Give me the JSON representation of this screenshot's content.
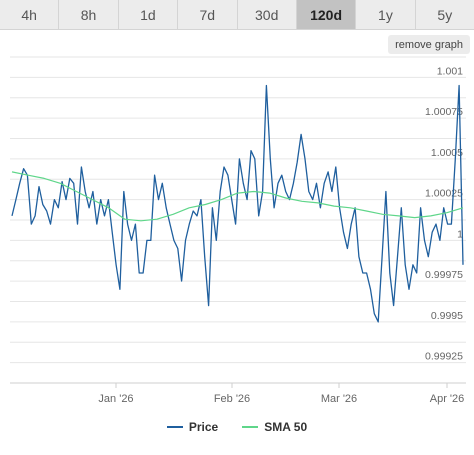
{
  "tabs": [
    {
      "label": "4h",
      "active": false
    },
    {
      "label": "8h",
      "active": false
    },
    {
      "label": "1d",
      "active": false
    },
    {
      "label": "7d",
      "active": false
    },
    {
      "label": "30d",
      "active": false
    },
    {
      "label": "120d",
      "active": true
    },
    {
      "label": "1y",
      "active": false
    },
    {
      "label": "5y",
      "active": false
    }
  ],
  "remove_graph_label": "remove graph",
  "colors": {
    "price": "#1f5f9e",
    "sma": "#5fd68a",
    "grid": "#e6e6e6",
    "axis_text": "#666666"
  },
  "chart_data": {
    "type": "line",
    "title": "",
    "xlabel": "",
    "ylabel": "",
    "x_ticks": [
      "Jan '26",
      "Feb '26",
      "Mar '26",
      "Apr '26"
    ],
    "y_ticks": [
      "1.001",
      "1.00075",
      "1.0005",
      "1.00025",
      "1",
      "0.99975",
      "0.9995",
      "0.99925"
    ],
    "ylim": [
      0.999125,
      1.001125
    ],
    "legend_position": "bottom",
    "series": [
      {
        "name": "Price",
        "color": "#1f5f9e",
        "values": [
          1.00015,
          1.00025,
          1.00035,
          1.00044,
          1.0004,
          1.0001,
          1.00015,
          1.00033,
          1.00022,
          1.00018,
          1.0001,
          1.00025,
          1.0002,
          1.00036,
          1.00025,
          1.00038,
          1.00035,
          1.0001,
          1.00045,
          1.0003,
          1.0002,
          1.0003,
          1.0001,
          1.00025,
          1.00015,
          1.00025,
          1.00005,
          0.99985,
          0.9997,
          1.0003,
          1.0001,
          1.0,
          1.0001,
          0.9998,
          0.9998,
          1.0,
          1.0,
          1.0004,
          1.00025,
          1.00035,
          1.0002,
          1.0001,
          1.0,
          0.99995,
          0.99975,
          1.0,
          1.0001,
          1.00018,
          1.00015,
          1.00025,
          0.9999,
          0.9996,
          1.0002,
          1.0,
          1.0003,
          1.00045,
          1.0004,
          1.00025,
          1.0001,
          1.0005,
          1.00035,
          1.00025,
          1.00055,
          1.0005,
          1.00015,
          1.0003,
          1.00095,
          1.0005,
          1.0002,
          1.00035,
          1.0004,
          1.0003,
          1.00025,
          1.00035,
          1.00048,
          1.00065,
          1.0005,
          1.0003,
          1.00025,
          1.00035,
          1.0002,
          1.00035,
          1.00042,
          1.0003,
          1.00045,
          1.0002,
          1.00005,
          0.99995,
          1.0001,
          1.0002,
          0.9999,
          0.9998,
          0.9998,
          0.9997,
          0.99955,
          0.9995,
          0.9999,
          1.0003,
          0.9998,
          0.9996,
          0.9999,
          1.0002,
          0.99985,
          0.9997,
          0.99985,
          0.9998,
          1.0002,
          1.0,
          0.9999,
          1.00005,
          1.0001,
          1.0,
          1.0002,
          1.0001,
          1.0001,
          1.0005,
          1.00095,
          0.99985
        ]
      },
      {
        "name": "SMA 50",
        "color": "#5fd68a",
        "values": [
          1.00042,
          1.0004,
          1.00038,
          1.00035,
          1.0003,
          1.00025,
          1.0002,
          1.00013,
          1.00012,
          1.00013,
          1.00016,
          1.0002,
          1.00022,
          1.00025,
          1.00029,
          1.0003,
          1.00029,
          1.00026,
          1.00024,
          1.00023,
          1.00021,
          1.0002,
          1.00018,
          1.00016,
          1.00015,
          1.00014,
          1.00015,
          1.00017,
          1.0002
        ]
      }
    ]
  }
}
